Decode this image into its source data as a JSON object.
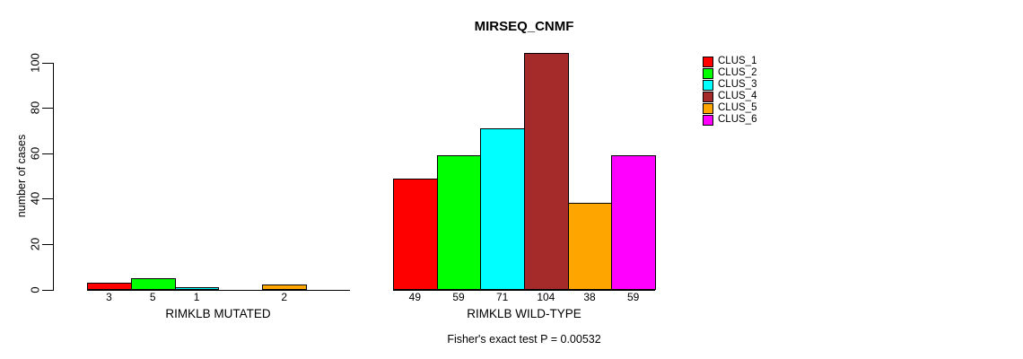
{
  "chart_data": {
    "type": "bar",
    "title": "MIRSEQ_CNMF",
    "ylabel": "number of cases",
    "xlabel": "",
    "ylim": [
      0,
      100
    ],
    "yticks": [
      0,
      20,
      40,
      60,
      80,
      100
    ],
    "grid": false,
    "legend_position": "top-right",
    "categories": [
      "RIMKLB MUTATED",
      "RIMKLB WILD-TYPE"
    ],
    "series": [
      {
        "name": "CLUS_1",
        "color": "#FF0000",
        "values": [
          3,
          49
        ]
      },
      {
        "name": "CLUS_2",
        "color": "#00FF00",
        "values": [
          5,
          59
        ]
      },
      {
        "name": "CLUS_3",
        "color": "#00FFFF",
        "values": [
          1,
          71
        ]
      },
      {
        "name": "CLUS_4",
        "color": "#A52A2A",
        "values": [
          0,
          104
        ]
      },
      {
        "name": "CLUS_5",
        "color": "#FFA500",
        "values": [
          2,
          38
        ]
      },
      {
        "name": "CLUS_6",
        "color": "#FF00FF",
        "values": [
          0,
          59
        ]
      }
    ],
    "bar_value_labels_visible": true,
    "zero_value_labels_hidden": true,
    "annotation": "Fisher's exact test P = 0.00532",
    "axis_color": "#000000",
    "bar_border_color": "#000000",
    "background_color": "#FFFFFF"
  }
}
